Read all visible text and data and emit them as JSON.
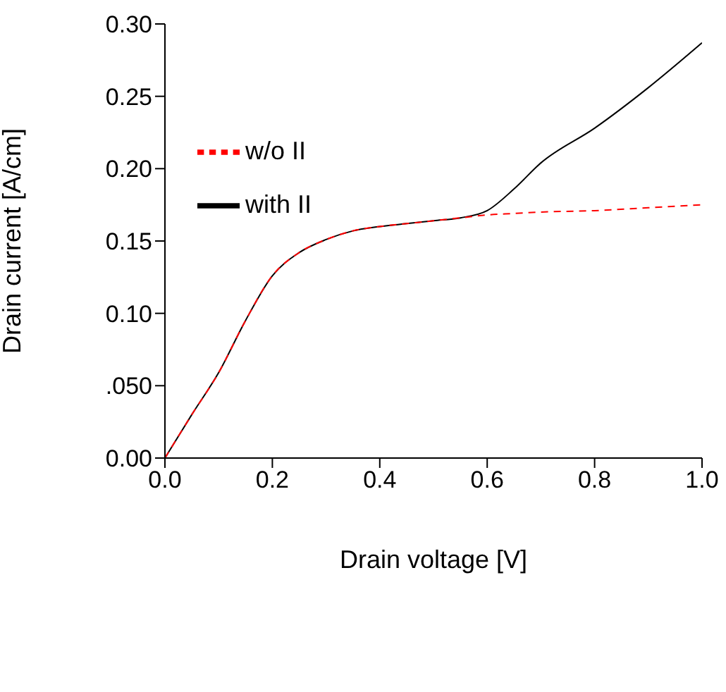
{
  "chart_data": {
    "type": "line",
    "xlabel": "Drain voltage  [V]",
    "ylabel": "Drain current  [A/cm]",
    "x": [
      0,
      0.05,
      0.1,
      0.15,
      0.2,
      0.25,
      0.3,
      0.35,
      0.4,
      0.45,
      0.5,
      0.55,
      0.6,
      0.65,
      0.7,
      0.8,
      0.9,
      1.0
    ],
    "series": [
      {
        "name": "w/o II",
        "color": "#ff0000",
        "line_style": "dashed",
        "values": [
          0,
          0.03,
          0.059,
          0.095,
          0.126,
          0.142,
          0.151,
          0.157,
          0.16,
          0.162,
          0.164,
          0.166,
          0.168,
          0.169,
          0.17,
          0.171,
          0.173,
          0.175
        ]
      },
      {
        "name": "with II",
        "color": "#000000",
        "line_style": "solid",
        "values": [
          0,
          0.03,
          0.059,
          0.095,
          0.126,
          0.142,
          0.151,
          0.157,
          0.16,
          0.162,
          0.164,
          0.166,
          0.171,
          0.186,
          0.204,
          0.228,
          0.256,
          0.287
        ]
      }
    ],
    "xlim": [
      0,
      1
    ],
    "xticks": [
      {
        "value": 0,
        "label": "0.0"
      },
      {
        "value": 0.2,
        "label": "0.2"
      },
      {
        "value": 0.4,
        "label": "0.4"
      },
      {
        "value": 0.6,
        "label": "0.6"
      },
      {
        "value": 0.8,
        "label": "0.8"
      },
      {
        "value": 1,
        "label": "1.0"
      }
    ],
    "ylim": [
      0,
      0.3
    ],
    "yticks": [
      {
        "value": 0,
        "label": "0.00"
      },
      {
        "value": 0.05,
        "label": ".050"
      },
      {
        "value": 0.1,
        "label": "0.10"
      },
      {
        "value": 0.15,
        "label": "0.15"
      },
      {
        "value": 0.2,
        "label": "0.20"
      },
      {
        "value": 0.25,
        "label": "0.25"
      },
      {
        "value": 0.3,
        "label": "0.30"
      }
    ],
    "grid": false,
    "legend": "top left",
    "marker": "none"
  }
}
